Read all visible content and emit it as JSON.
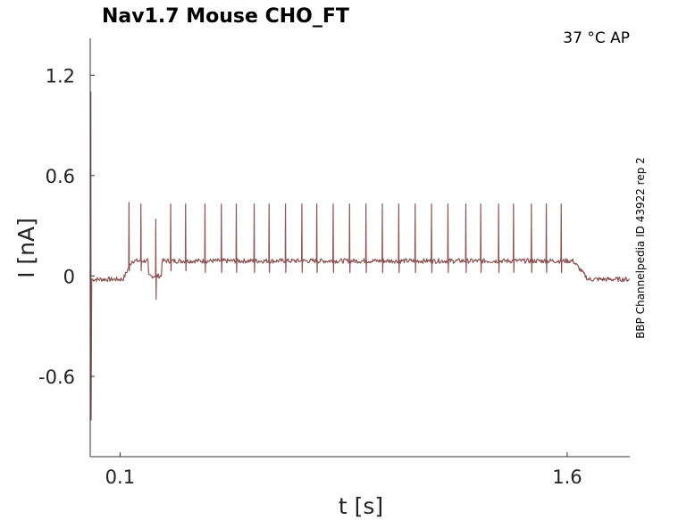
{
  "chart_data": {
    "type": "line",
    "title": "Nav1.7  Mouse  CHO_FT",
    "annotation": "37 °C  AP",
    "side_label": "BBP Channelpedia ID 43922 rep 2",
    "xlabel": "t [s]",
    "ylabel": "I [nA]",
    "xlim": [
      0.0,
      1.81
    ],
    "ylim": [
      -1.08,
      1.42
    ],
    "xticks": [
      0.1,
      1.6
    ],
    "xtick_labels": [
      "0.1",
      "1.6"
    ],
    "yticks": [
      1.2,
      0.6,
      0,
      -0.6
    ],
    "ytick_labels": [
      "1.2",
      "0.6",
      "0",
      "-0.6"
    ],
    "grid": false,
    "legend": "none",
    "color": "#8b5454",
    "series": [
      {
        "baseline_start": -0.02,
        "plateau_level": 0.09,
        "onset_s": 0.11,
        "offset_s": 1.62,
        "initial_transient": {
          "t": 0.002,
          "peak": 1.1,
          "trough": -0.86
        },
        "dip": {
          "t_start": 0.195,
          "t_end": 0.24,
          "level": 0.0
        },
        "spikes": [
          {
            "t": 0.13,
            "peak": 0.44,
            "trough": 0.03
          },
          {
            "t": 0.17,
            "peak": 0.43,
            "trough": 0.03
          },
          {
            "t": 0.22,
            "peak": 0.34,
            "trough": -0.14
          },
          {
            "t": 0.27,
            "peak": 0.43,
            "trough": 0.03
          },
          {
            "t": 0.32,
            "peak": 0.43,
            "trough": 0.03
          },
          {
            "t": 0.385,
            "peak": 0.43,
            "trough": 0.02
          },
          {
            "t": 0.44,
            "peak": 0.43,
            "trough": 0.02
          },
          {
            "t": 0.49,
            "peak": 0.43,
            "trough": 0.02
          },
          {
            "t": 0.55,
            "peak": 0.43,
            "trough": 0.02
          },
          {
            "t": 0.6,
            "peak": 0.43,
            "trough": 0.02
          },
          {
            "t": 0.655,
            "peak": 0.43,
            "trough": 0.02
          },
          {
            "t": 0.71,
            "peak": 0.43,
            "trough": 0.02
          },
          {
            "t": 0.76,
            "peak": 0.43,
            "trough": 0.02
          },
          {
            "t": 0.815,
            "peak": 0.43,
            "trough": 0.02
          },
          {
            "t": 0.87,
            "peak": 0.43,
            "trough": 0.02
          },
          {
            "t": 0.925,
            "peak": 0.43,
            "trough": 0.02
          },
          {
            "t": 0.98,
            "peak": 0.43,
            "trough": 0.02
          },
          {
            "t": 1.035,
            "peak": 0.43,
            "trough": 0.02
          },
          {
            "t": 1.09,
            "peak": 0.43,
            "trough": 0.02
          },
          {
            "t": 1.145,
            "peak": 0.43,
            "trough": 0.02
          },
          {
            "t": 1.2,
            "peak": 0.43,
            "trough": 0.02
          },
          {
            "t": 1.26,
            "peak": 0.43,
            "trough": 0.02
          },
          {
            "t": 1.31,
            "peak": 0.43,
            "trough": 0.02
          },
          {
            "t": 1.37,
            "peak": 0.43,
            "trough": 0.02
          },
          {
            "t": 1.42,
            "peak": 0.43,
            "trough": 0.02
          },
          {
            "t": 1.48,
            "peak": 0.43,
            "trough": 0.02
          },
          {
            "t": 1.53,
            "peak": 0.43,
            "trough": 0.02
          },
          {
            "t": 1.58,
            "peak": 0.43,
            "trough": 0.02
          }
        ]
      }
    ]
  }
}
